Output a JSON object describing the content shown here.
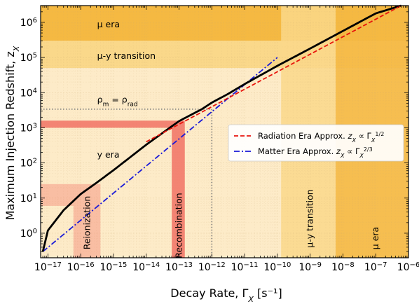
{
  "chart_data": {
    "type": "line",
    "xlabel": "Decay Rate, Γ",
    "xlabel_sub": "X",
    "xlabel_unit": "[s⁻¹]",
    "ylabel": "Maximum Injection Redshift, z",
    "ylabel_sub": "X",
    "x_scale": "log",
    "y_scale": "log",
    "xlim": [
      6e-18,
      1e-06
    ],
    "ylim": [
      0.2,
      3000000.0
    ],
    "x_ticks": [
      {
        "value": 1e-17,
        "base": "10",
        "exp": "−17"
      },
      {
        "value": 1e-16,
        "base": "10",
        "exp": "−16"
      },
      {
        "value": 1e-15,
        "base": "10",
        "exp": "−15"
      },
      {
        "value": 1e-14,
        "base": "10",
        "exp": "−14"
      },
      {
        "value": 1e-13,
        "base": "10",
        "exp": "−13"
      },
      {
        "value": 1e-12,
        "base": "10",
        "exp": "−12"
      },
      {
        "value": 1e-11,
        "base": "10",
        "exp": "−11"
      },
      {
        "value": 1e-10,
        "base": "10",
        "exp": "−10"
      },
      {
        "value": 1e-09,
        "base": "10",
        "exp": "−9"
      },
      {
        "value": 1e-08,
        "base": "10",
        "exp": "−8"
      },
      {
        "value": 1e-07,
        "base": "10",
        "exp": "−7"
      },
      {
        "value": 1e-06,
        "base": "10",
        "exp": "−6"
      }
    ],
    "y_ticks": [
      {
        "value": 1,
        "base": "10",
        "exp": "0"
      },
      {
        "value": 10,
        "base": "10",
        "exp": "1"
      },
      {
        "value": 100,
        "base": "10",
        "exp": "2"
      },
      {
        "value": 1000,
        "base": "10",
        "exp": "3"
      },
      {
        "value": 10000,
        "base": "10",
        "exp": "4"
      },
      {
        "value": 100000,
        "base": "10",
        "exp": "5"
      },
      {
        "value": 1000000,
        "base": "10",
        "exp": "6"
      }
    ],
    "colors": {
      "mu_era": "#f5b942",
      "transition": "#fad88a",
      "y_era": "#fdebc8",
      "epoch_band": "#f06a5e",
      "main_curve": "#000000",
      "blue_curve": "#1a1ad8",
      "red_dash": "#e8140c",
      "dotted": "#7a7a7a"
    },
    "horizontal_regions": [
      {
        "label": "μ era",
        "ymin": 300000,
        "ymax": 3000000.0
      },
      {
        "label": "μ-y transition",
        "ymin": 50000,
        "ymax": 300000
      },
      {
        "label": "y era",
        "ymin": 0.2,
        "ymax": 50000
      }
    ],
    "vertical_regions": [
      {
        "label": "μ-y transition",
        "xmin": 1.3e-10,
        "xmax": 6e-09
      },
      {
        "label": "μ era",
        "xmin": 6e-09,
        "xmax": 1e-06
      }
    ],
    "epoch_bands": [
      {
        "label": "Reionization",
        "xmin": 6e-17,
        "xmax": 4e-16,
        "ymin": 6,
        "ymax": 25
      },
      {
        "label": "Recombination",
        "xmin": 6e-14,
        "xmax": 1.5e-13,
        "ymin": 1000,
        "ymax": 1600
      }
    ],
    "equality": {
      "label_lhs": "ρ",
      "label_lhs_sub": "m",
      "label_rhs": "ρ",
      "label_rhs_sub": "rad",
      "x": 1e-12,
      "y": 3400
    },
    "region_labels": [
      {
        "text": "μ era",
        "x": 8e-17,
        "y": 900000.0
      },
      {
        "text": "μ-y transition",
        "x": 8e-17,
        "y": 115000.0
      },
      {
        "text": "y era",
        "x": 8e-17,
        "y": 180
      }
    ],
    "series": [
      {
        "name_main": "",
        "style": "solid",
        "x": [
          7e-18,
          1e-17,
          3e-17,
          1e-16,
          3e-16,
          1e-15,
          1e-14,
          1e-13,
          5e-13,
          1e-12,
          3e-12,
          1e-11,
          1e-10,
          1e-09,
          1e-08,
          1e-07,
          6e-07
        ],
        "y": [
          0.3,
          1.2,
          4.5,
          13,
          27,
          62,
          330,
          1550,
          3400,
          5200,
          9000,
          17500,
          58000,
          180000,
          570000,
          1800000,
          3000000
        ]
      },
      {
        "name_main": "Radiation Era Approx.",
        "name_formula": "z",
        "name_formula_sub": "X",
        "name_formula_rel": " ∝ Γ",
        "name_formula_rel_sub": "X",
        "name_formula_sup": "1/2",
        "style": "dashed",
        "x": [
          1e-14,
          6e-07
        ],
        "y": [
          400,
          3000000
        ]
      },
      {
        "name_main": "Matter Era Approx.",
        "name_formula": "z",
        "name_formula_sub": "X",
        "name_formula_rel": " ∝ Γ",
        "name_formula_rel_sub": "X",
        "name_formula_sup": "2/3",
        "style": "dashdot",
        "x": [
          7e-18,
          1e-10
        ],
        "y": [
          0.3,
          100000
        ]
      }
    ],
    "vertical_band_labels": [
      {
        "text": "Reionization",
        "x": 1.6e-16
      },
      {
        "text": "Recombination",
        "x": 1e-13
      },
      {
        "text": "μ-y transition",
        "x": 1e-09
      },
      {
        "text": "μ era",
        "x": 1e-07
      }
    ],
    "legend_position": "right"
  }
}
